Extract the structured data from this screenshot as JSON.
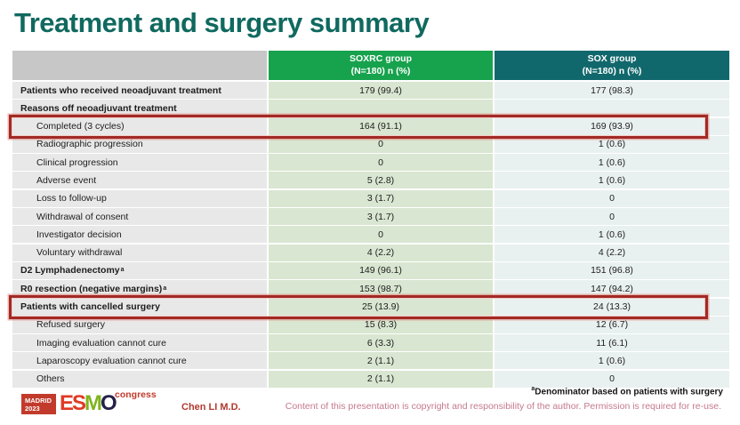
{
  "slide": {
    "title": "Treatment and surgery summary",
    "footnote_sup": "a",
    "footnote": "Denominator based on patients with surgery",
    "copyright": "Content of this presentation is copyright and responsibility of the author.  Permission is required for re-use.",
    "presenter": "Chen LI M.D."
  },
  "logo": {
    "city": "MADRID",
    "year": "2023",
    "org_letters": [
      "E",
      "S",
      "M",
      "O"
    ],
    "event": "congress"
  },
  "table": {
    "columns": [
      {
        "line1": "SOXRC group",
        "line2": "(N=180)  n (%)"
      },
      {
        "line1": "SOX group",
        "line2": "(N=180)  n (%)"
      }
    ],
    "rows": [
      {
        "label": "Patients who received neoadjuvant treatment",
        "sup": "",
        "soxrc": "179 (99.4)",
        "sox": "177 (98.3)",
        "bold": true,
        "indent": false,
        "boxed": false
      },
      {
        "label": "Reasons off neoadjuvant treatment",
        "sup": "",
        "soxrc": "",
        "sox": "",
        "bold": true,
        "indent": false,
        "boxed": false
      },
      {
        "label": "Completed (3 cycles)",
        "sup": "",
        "soxrc": "164 (91.1)",
        "sox": "169 (93.9)",
        "bold": false,
        "indent": true,
        "boxed": true
      },
      {
        "label": "Radiographic progression",
        "sup": "",
        "soxrc": "0",
        "sox": "1 (0.6)",
        "bold": false,
        "indent": true,
        "boxed": false
      },
      {
        "label": "Clinical progression",
        "sup": "",
        "soxrc": "0",
        "sox": "1 (0.6)",
        "bold": false,
        "indent": true,
        "boxed": false
      },
      {
        "label": "Adverse event",
        "sup": "",
        "soxrc": "5 (2.8)",
        "sox": "1 (0.6)",
        "bold": false,
        "indent": true,
        "boxed": false
      },
      {
        "label": "Loss to follow-up",
        "sup": "",
        "soxrc": "3 (1.7)",
        "sox": "0",
        "bold": false,
        "indent": true,
        "boxed": false
      },
      {
        "label": "Withdrawal of consent",
        "sup": "",
        "soxrc": "3 (1.7)",
        "sox": "0",
        "bold": false,
        "indent": true,
        "boxed": false
      },
      {
        "label": "Investigator decision",
        "sup": "",
        "soxrc": "0",
        "sox": "1 (0.6)",
        "bold": false,
        "indent": true,
        "boxed": false
      },
      {
        "label": "Voluntary withdrawal",
        "sup": "",
        "soxrc": "4 (2.2)",
        "sox": "4 (2.2)",
        "bold": false,
        "indent": true,
        "boxed": false
      },
      {
        "label": "D2 Lymphadenectomy",
        "sup": "a",
        "soxrc": "149 (96.1)",
        "sox": "151 (96.8)",
        "bold": true,
        "indent": false,
        "boxed": false
      },
      {
        "label": "R0 resection (negative margins)",
        "sup": "a",
        "soxrc": "153 (98.7)",
        "sox": "147 (94.2)",
        "bold": true,
        "indent": false,
        "boxed": false
      },
      {
        "label": "Patients with cancelled surgery",
        "sup": "",
        "soxrc": "25 (13.9)",
        "sox": "24 (13.3)",
        "bold": true,
        "indent": false,
        "boxed": true
      },
      {
        "label": "Refused surgery",
        "sup": "",
        "soxrc": "15 (8.3)",
        "sox": "12 (6.7)",
        "bold": false,
        "indent": true,
        "boxed": false
      },
      {
        "label": "Imaging evaluation cannot cure",
        "sup": "",
        "soxrc": "6 (3.3)",
        "sox": "11 (6.1)",
        "bold": false,
        "indent": true,
        "boxed": false
      },
      {
        "label": "Laparoscopy evaluation cannot cure",
        "sup": "",
        "soxrc": "2 (1.1)",
        "sox": "1 (0.6)",
        "bold": false,
        "indent": true,
        "boxed": false
      },
      {
        "label": "Others",
        "sup": "",
        "soxrc": "2 (1.1)",
        "sox": "0",
        "bold": false,
        "indent": true,
        "boxed": false
      }
    ]
  },
  "colors": {
    "title": "#10695F",
    "header_soxrc": "#17A24D",
    "header_sox": "#11686C",
    "label_col_bg": "#E8E8E8",
    "soxrc_col_bg": "#D9E6D1",
    "sox_col_bg": "#E9F1F0",
    "highlight_border": "#A22A25",
    "copyright_text": "#C5798B",
    "presenter_text": "#B03A30"
  }
}
